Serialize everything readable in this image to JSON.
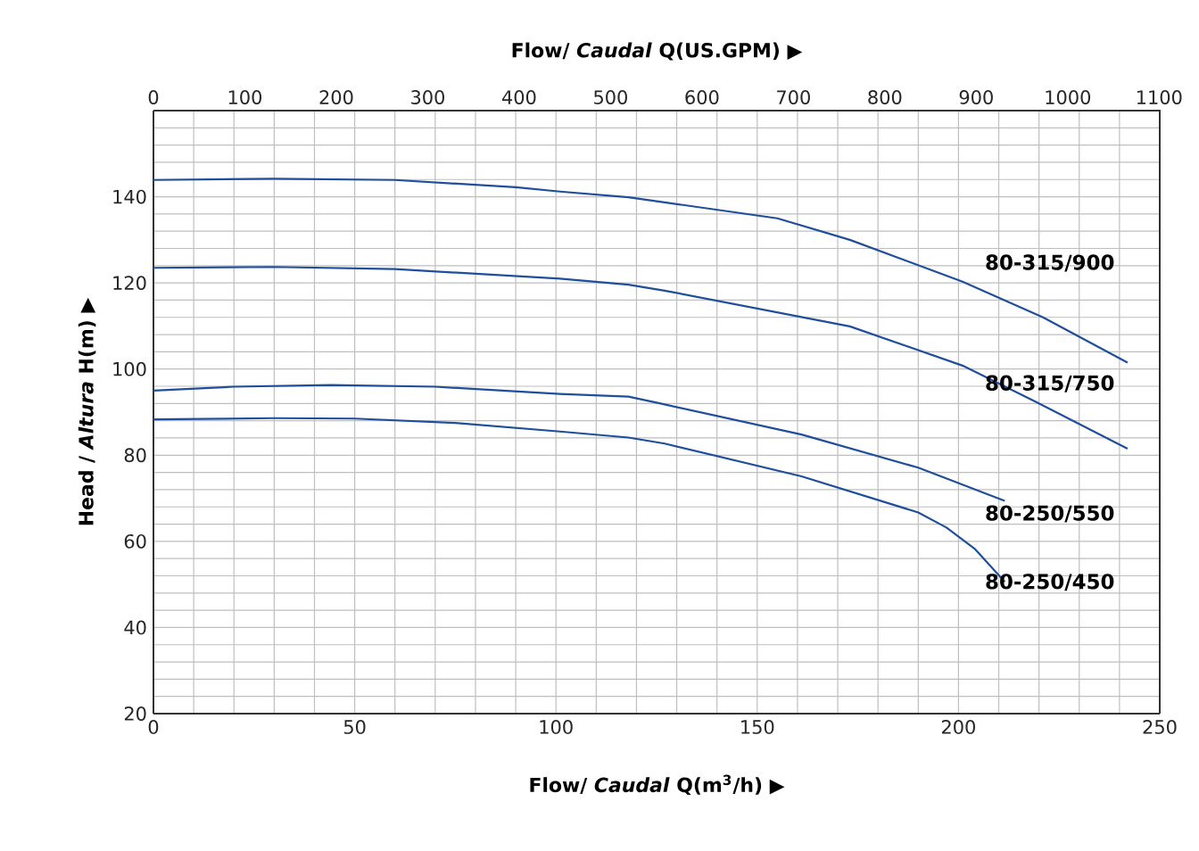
{
  "chart_data": {
    "type": "line",
    "xlabel": "Flow/ *Caudal* Q(m$^{3}$/h) ▶",
    "x2label": "Flow/ *Caudal* Q(US.GPM) ▶",
    "ylabel": "Head / *Altura* H(m) ▶",
    "xlim": [
      0,
      250
    ],
    "ylim": [
      20,
      160
    ],
    "x2lim": [
      0,
      1100.7
    ],
    "xticks": [
      0,
      {
        "value": 10,
        "label": null
      },
      {
        "value": 20,
        "label": null
      },
      {
        "value": 30,
        "label": null
      },
      {
        "value": 40,
        "label": null
      },
      50,
      {
        "value": 60,
        "label": null
      },
      {
        "value": 70,
        "label": null
      },
      {
        "value": 80,
        "label": null
      },
      {
        "value": 90,
        "label": null
      },
      100,
      {
        "value": 110,
        "label": null
      },
      {
        "value": 120,
        "label": null
      },
      {
        "value": 130,
        "label": null
      },
      {
        "value": 140,
        "label": null
      },
      150,
      {
        "value": 160,
        "label": null
      },
      {
        "value": 170,
        "label": null
      },
      {
        "value": 180,
        "label": null
      },
      {
        "value": 190,
        "label": null
      },
      200,
      {
        "value": 210,
        "label": null
      },
      {
        "value": 220,
        "label": null
      },
      {
        "value": 230,
        "label": null
      },
      {
        "value": 240,
        "label": null
      },
      250
    ],
    "yticks": [
      20,
      {
        "value": 24,
        "label": null
      },
      {
        "value": 28,
        "label": null
      },
      {
        "value": 32,
        "label": null
      },
      {
        "value": 36,
        "label": null
      },
      40,
      {
        "value": 44,
        "label": null
      },
      {
        "value": 48,
        "label": null
      },
      {
        "value": 52,
        "label": null
      },
      {
        "value": 56,
        "label": null
      },
      60,
      {
        "value": 64,
        "label": null
      },
      {
        "value": 68,
        "label": null
      },
      {
        "value": 72,
        "label": null
      },
      {
        "value": 76,
        "label": null
      },
      80,
      {
        "value": 84,
        "label": null
      },
      {
        "value": 88,
        "label": null
      },
      {
        "value": 92,
        "label": null
      },
      {
        "value": 96,
        "label": null
      },
      100,
      {
        "value": 104,
        "label": null
      },
      {
        "value": 108,
        "label": null
      },
      {
        "value": 112,
        "label": null
      },
      {
        "value": 116,
        "label": null
      },
      120,
      {
        "value": 124,
        "label": null
      },
      {
        "value": 128,
        "label": null
      },
      {
        "value": 132,
        "label": null
      },
      {
        "value": 136,
        "label": null
      },
      140,
      {
        "value": 144,
        "label": null
      },
      {
        "value": 148,
        "label": null
      },
      {
        "value": 152,
        "label": null
      },
      {
        "value": 156,
        "label": null
      },
      {
        "value": 160,
        "label": null
      }
    ],
    "x2ticks": [
      0,
      100,
      200,
      300,
      400,
      500,
      600,
      700,
      800,
      900,
      1000,
      1100
    ],
    "grid": true,
    "marker": "none",
    "line_style": "solid",
    "series": [
      {
        "name": "80-315/900",
        "color": "#1f4e9c",
        "x": [
          0,
          30,
          60,
          90,
          101,
          118,
          127,
          155,
          173,
          201,
          221,
          242
        ],
        "values": [
          143.9,
          144.2,
          143.9,
          142.2,
          141.2,
          139.9,
          138.7,
          135,
          130,
          120.3,
          112,
          101.5
        ]
      },
      {
        "name": "80-315/750",
        "color": "#1f4e9c",
        "x": [
          0,
          30,
          60,
          101,
          118,
          127,
          173,
          201,
          219,
          242
        ],
        "values": [
          123.5,
          123.7,
          123.2,
          121,
          119.6,
          118.2,
          109.9,
          100.8,
          92.5,
          81.5
        ]
      },
      {
        "name": "80-250/550",
        "color": "#1f4e9c",
        "x": [
          0,
          20,
          44,
          70,
          101,
          118,
          125,
          161,
          190,
          211.5
        ],
        "values": [
          95,
          95.9,
          96.3,
          95.9,
          94.2,
          93.6,
          92.2,
          84.8,
          77.1,
          69.4
        ]
      },
      {
        "name": "80-250/450",
        "color": "#1f4e9c",
        "x": [
          0,
          30,
          50,
          75,
          101,
          118,
          127,
          161,
          190,
          197,
          204,
          211.5
        ],
        "values": [
          88.3,
          88.6,
          88.5,
          87.5,
          85.5,
          84.1,
          82.7,
          75.1,
          66.7,
          63.2,
          58.3,
          50.6
        ]
      }
    ]
  }
}
